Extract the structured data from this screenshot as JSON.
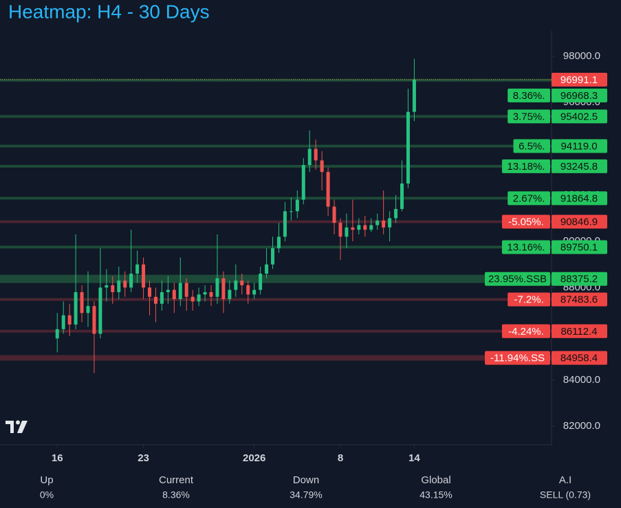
{
  "chart_data": {
    "type": "candlestick",
    "title": "Heatmap: H4 - 30 Days",
    "x": [
      0,
      0.5,
      1,
      1.5,
      2,
      2.5,
      3,
      3.5,
      4,
      4.5,
      5,
      5.5,
      6,
      6.5,
      7,
      7.5,
      8,
      8.5,
      9,
      9.5,
      10,
      10.5,
      11,
      11.5,
      12,
      12.5,
      13,
      13.5,
      14,
      14.5,
      15,
      15.5,
      16,
      16.5,
      17,
      17.5,
      18,
      18.5,
      19,
      19.5,
      20,
      20.5,
      21,
      21.5,
      22,
      22.5,
      23,
      23.5,
      24,
      24.5,
      25,
      25.5,
      26,
      26.5,
      27,
      27.5,
      28,
      28.5,
      29
    ],
    "open": [
      85800,
      86200,
      86800,
      86400,
      87800,
      86900,
      87200,
      86000,
      88000,
      88100,
      87800,
      88300,
      88000,
      88600,
      89000,
      88000,
      87600,
      87300,
      87800,
      87900,
      87500,
      88200,
      87600,
      87400,
      87700,
      87800,
      87600,
      88400,
      87500,
      87900,
      88300,
      88100,
      87700,
      87900,
      88600,
      89000,
      89700,
      90200,
      91300,
      91300,
      91800,
      93300,
      94000,
      93500,
      93000,
      91500,
      90800,
      90200,
      90600,
      90500,
      90700,
      90500,
      90700,
      90900,
      90600,
      91000,
      91400,
      92500,
      95600
    ],
    "high": [
      86900,
      87400,
      87300,
      90300,
      88100,
      88700,
      87400,
      89700,
      88800,
      88500,
      88900,
      88700,
      90500,
      89600,
      89300,
      88300,
      88000,
      88300,
      88500,
      88200,
      89300,
      88400,
      87900,
      88000,
      88100,
      88100,
      90300,
      88700,
      88300,
      89000,
      88600,
      88300,
      88200,
      88900,
      89700,
      90200,
      90800,
      91700,
      91900,
      92200,
      93600,
      94800,
      94400,
      93900,
      93200,
      91800,
      91000,
      91200,
      91800,
      91000,
      91100,
      91000,
      91200,
      92200,
      91300,
      92000,
      93500,
      96600,
      97900
    ],
    "low": [
      85200,
      86000,
      85900,
      86200,
      86500,
      86300,
      84300,
      85800,
      87400,
      87300,
      87500,
      87600,
      87800,
      88200,
      87500,
      86800,
      86500,
      87000,
      87300,
      86900,
      87200,
      87000,
      87000,
      87200,
      87400,
      87200,
      87300,
      86900,
      87300,
      87600,
      87700,
      87300,
      87500,
      87700,
      88400,
      88800,
      89500,
      90000,
      90900,
      91000,
      91600,
      93000,
      93100,
      92200,
      91100,
      90300,
      89200,
      89700,
      90000,
      90300,
      90200,
      90400,
      90500,
      90300,
      90000,
      90800,
      91300,
      92300,
      95200
    ],
    "close": [
      86200,
      86800,
      86400,
      87800,
      86900,
      87200,
      86000,
      88000,
      88100,
      87800,
      88300,
      88000,
      88600,
      89000,
      88000,
      87600,
      87300,
      87800,
      87900,
      87500,
      88200,
      87600,
      87400,
      87700,
      87800,
      87600,
      88400,
      87500,
      87900,
      88300,
      88100,
      87700,
      87900,
      88600,
      89000,
      89700,
      90200,
      91300,
      91300,
      91800,
      93300,
      94000,
      93500,
      93000,
      91500,
      90800,
      90200,
      90600,
      90500,
      90700,
      90500,
      90700,
      90900,
      90600,
      91000,
      91400,
      92500,
      95600,
      96991.1
    ],
    "up_color": "#26c281",
    "down_color": "#ef5350",
    "xlim": [
      -4.65,
      40.15
    ],
    "xticks": [
      {
        "value": 0,
        "label": "16"
      },
      {
        "value": 7,
        "label": "23"
      },
      {
        "value": 16,
        "label": "2026"
      },
      {
        "value": 23,
        "label": "8"
      },
      {
        "value": 29,
        "label": "14"
      }
    ],
    "ylim": [
      81200,
      99100
    ],
    "yticks": [
      {
        "value": 82000,
        "label": "82000.0"
      },
      {
        "value": 84000,
        "label": "84000.0"
      },
      {
        "value": 86000,
        "label": "86000.0"
      },
      {
        "value": 88000,
        "label": "88000.0"
      },
      {
        "value": 90000,
        "label": "90000.0"
      },
      {
        "value": 92000,
        "label": "92000.0"
      },
      {
        "value": 94000,
        "label": "94000.0"
      },
      {
        "value": 96000,
        "label": "96000.0"
      },
      {
        "value": 98000,
        "label": "98000.0"
      }
    ],
    "current_price": 96991.1,
    "current_color": "#ef4444",
    "levels": {
      "values": [
        96968.3,
        95402.5,
        94119,
        93245.8,
        91864.8,
        90846.9,
        89750.1,
        88375.2,
        87483.6,
        86112.4,
        84958.4
      ],
      "value_labels": [
        "96968.3",
        "95402.5",
        "94119.0",
        "93245.8",
        "91864.8",
        "90846.9",
        "89750.1",
        "88375.2",
        "87483.6",
        "86112.4",
        "84958.4"
      ],
      "tags": [
        "8.36%.",
        "3.75%.",
        "6.5%.",
        "13.18%.",
        "2.67%.",
        "-5.05%.",
        "13.16%.",
        "23.95%.SSB",
        "-7.2%.",
        "-4.24%.",
        "-11.94%.SS"
      ],
      "colors": [
        "#22c55e",
        "#22c55e",
        "#22c55e",
        "#22c55e",
        "#22c55e",
        "#ef4444",
        "#22c55e",
        "#22c55e",
        "#ef4444",
        "#ef4444",
        "#ef4444"
      ]
    },
    "stats": {
      "headers": [
        "Up",
        "Current",
        "Down",
        "Global",
        "A.I"
      ],
      "values": [
        "0%",
        "8.36%",
        "34.79%",
        "43.15%",
        "SELL (0.73)"
      ]
    }
  }
}
